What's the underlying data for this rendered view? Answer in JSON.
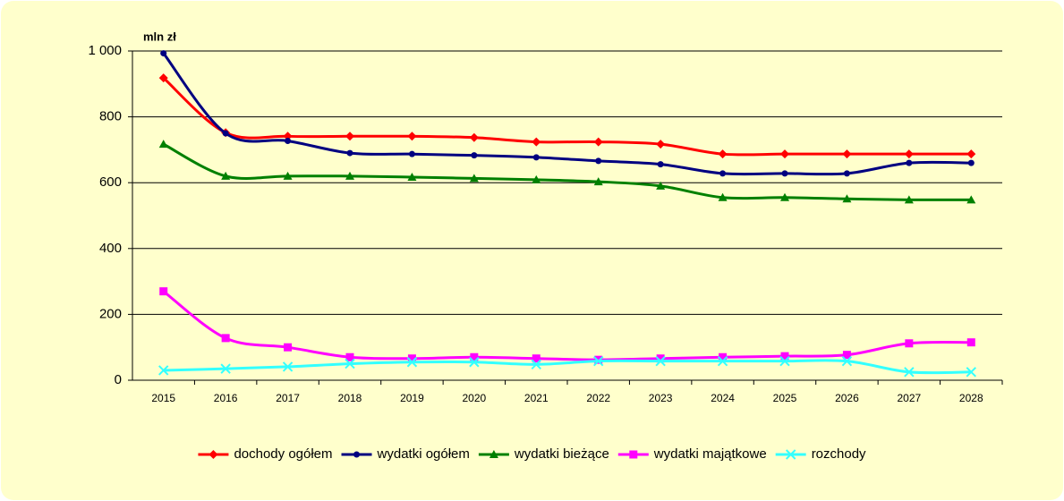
{
  "chart_data": {
    "type": "line",
    "unit_label": "mln zł",
    "categories": [
      "2015",
      "2016",
      "2017",
      "2018",
      "2019",
      "2020",
      "2021",
      "2022",
      "2023",
      "2024",
      "2025",
      "2026",
      "2027",
      "2028"
    ],
    "series": [
      {
        "name": "dochody ogółem",
        "color": "#FF0000",
        "marker": "diamond",
        "values": [
          918,
          752,
          741,
          741,
          741,
          737,
          724,
          724,
          717,
          687,
          687,
          687,
          687,
          687
        ]
      },
      {
        "name": "wydatki ogółem",
        "color": "#000080",
        "marker": "circle",
        "values": [
          993,
          750,
          727,
          690,
          687,
          683,
          677,
          666,
          656,
          628,
          628,
          628,
          660,
          660
        ]
      },
      {
        "name": "wydatki bieżące",
        "color": "#008000",
        "marker": "triangle",
        "values": [
          717,
          620,
          620,
          620,
          617,
          613,
          609,
          603,
          590,
          555,
          555,
          551,
          548,
          548
        ]
      },
      {
        "name": "wydatki majątkowe",
        "color": "#FF00FF",
        "marker": "square",
        "values": [
          270,
          128,
          100,
          70,
          66,
          70,
          66,
          62,
          66,
          70,
          73,
          77,
          112,
          115
        ]
      },
      {
        "name": "rozchody",
        "color": "#33FFFF",
        "marker": "x",
        "values": [
          30,
          35,
          41,
          50,
          55,
          55,
          48,
          58,
          58,
          58,
          58,
          58,
          25,
          25
        ]
      }
    ],
    "ylim": [
      0,
      1000
    ],
    "yticks": [
      0,
      200,
      400,
      600,
      800,
      {
        "value": 1000,
        "label": "1 000"
      }
    ],
    "grid": true,
    "smooth": true,
    "legend": "bottom"
  }
}
